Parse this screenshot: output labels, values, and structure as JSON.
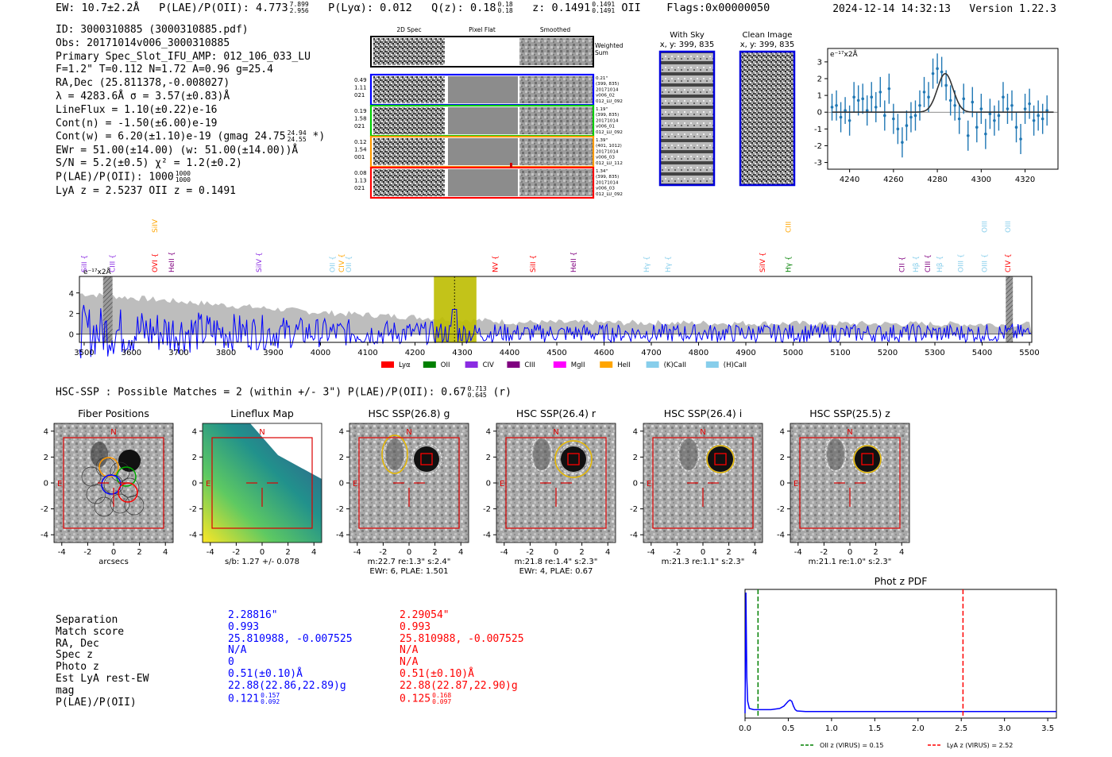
{
  "header": {
    "ew": "EW: 10.7±2.2Å",
    "plae_label": "P(LAE)/P(OII): 4.773",
    "plae_hi": "7.899",
    "plae_lo": "2.956",
    "plya": "P(Lyα): 0.012",
    "qz_label": "Q(z): 0.18",
    "qz_hi": "0.18",
    "qz_lo": "0.18",
    "z_label": "z: 0.1491",
    "z_hi": "0.1491",
    "z_lo": "0.1491",
    "z_line": "OII",
    "flags": "Flags:0x00000050",
    "datetime": "2024-12-14 14:32:13",
    "version": "Version 1.22.3"
  },
  "info": {
    "id": "ID: 3000310885 (3000310885.pdf)",
    "obs": "Obs: 20171014v006_3000310885",
    "primary": "Primary Spec_Slot_IFU_AMP: 012_106_033_LU",
    "params": "F=1.2\"  T=0.112  N=1.72  A=0.96  g=25.4",
    "radec": "RA,Dec (25.811378,-0.008027)",
    "lambda": "λ = 4283.6Å   σ = 3.57(±0.83)Å",
    "lineflux": "LineFlux = 1.10(±0.22)e-16",
    "contn": "Cont(n) = -1.50(±6.00)e-19",
    "contw": "Cont(w) = 6.20(±1.10)e-19 (gmag 24.75",
    "contw_hi": "24.94",
    "contw_lo": "24.55",
    "contw_end": "*)",
    "ewr": "EWr = 51.00(±14.00) (w: 51.00(±14.00))Å",
    "sn": "S/N = 5.2(±0.5)  χ² = 1.2(±0.2)",
    "plae": "P(LAE)/P(OII): 1000",
    "plae_hi": "1000",
    "plae_lo": "1000",
    "lyaz": "LyA z = 2.5237   OII z = 0.1491"
  },
  "cutouts": {
    "col_labels": [
      "2D Spec",
      "Pixel Flat",
      "Smoothed"
    ],
    "weighted_sum": [
      "Weighted",
      "Sum"
    ],
    "rows": [
      {
        "left": [
          "0.49",
          "1.11",
          "021"
        ],
        "right": [
          "0.21\"",
          "(399, 835)",
          "20171014",
          "v006_02",
          "012_LU_092"
        ],
        "color": "#0000ff"
      },
      {
        "left": [
          "0.19",
          "1.58",
          "021"
        ],
        "right": [
          "1.19\"",
          "(399, 835)",
          "20171014",
          "v006_01",
          "012_LU_092"
        ],
        "color": "#00cc00"
      },
      {
        "left": [
          "0.12",
          "1.54",
          "001"
        ],
        "right": [
          "1.39\"",
          "(401, 1012)",
          "20171014",
          "v006_03",
          "012_LU_112"
        ],
        "color": "#ff9900"
      },
      {
        "left": [
          "0.08",
          "1.13",
          "021"
        ],
        "right": [
          "1.34\"",
          "(399, 835)",
          "20171014",
          "v006_03",
          "012_LU_092"
        ],
        "color": "#ff0000"
      }
    ]
  },
  "sky": {
    "with_sky_title": "With Sky",
    "with_sky_coords": "x, y: 399, 835",
    "clean_title": "Clean Image",
    "clean_coords": "x, y: 399, 835"
  },
  "zoom_plot": {
    "ylabel": "e⁻¹⁷x2Å",
    "xticks": [
      "4240",
      "4260",
      "4280",
      "4300",
      "4320"
    ],
    "yticks": [
      "3",
      "2",
      "1",
      "0",
      "-1",
      "-2",
      "-3"
    ]
  },
  "spectrum": {
    "ylabel": "e⁻¹⁷x2Å",
    "xticks": [
      "3500",
      "3600",
      "3700",
      "3800",
      "3900",
      "4000",
      "4100",
      "4200",
      "4300",
      "4400",
      "4500",
      "4600",
      "4700",
      "4800",
      "4900",
      "5000",
      "5100",
      "5200",
      "5300",
      "5400",
      "5500"
    ],
    "yticks": [
      "4",
      "2",
      "0"
    ],
    "legend": [
      {
        "label": "Lyα",
        "color": "#ff0000"
      },
      {
        "label": "OII",
        "color": "#008000"
      },
      {
        "label": "CIV",
        "color": "#8a2be2"
      },
      {
        "label": "CIII",
        "color": "#800080"
      },
      {
        "label": "MgII",
        "color": "#ff00ff"
      },
      {
        "label": "HeII",
        "color": "#ffa500"
      },
      {
        "label": "(K)CaII",
        "color": "#87ceeb"
      },
      {
        "label": "(H)CaII",
        "color": "#87ceeb"
      }
    ],
    "line_labels": [
      {
        "text": "SiII",
        "wave": 3500,
        "color": "#8a2be2",
        "row": "low"
      },
      {
        "text": "CIII",
        "wave": 3560,
        "color": "#8a2be2",
        "row": "low"
      },
      {
        "text": "OVI",
        "wave": 3650,
        "color": "#ff0000",
        "row": "low"
      },
      {
        "text": "SiIV",
        "wave": 3650,
        "color": "#ffa500",
        "row": "high"
      },
      {
        "text": "HeII",
        "wave": 3685,
        "color": "#800080",
        "row": "low"
      },
      {
        "text": "SiIV",
        "wave": 3870,
        "color": "#8a2be2",
        "row": "low"
      },
      {
        "text": "OII",
        "wave": 4025,
        "color": "#87ceeb",
        "row": "low"
      },
      {
        "text": "CIV",
        "wave": 4045,
        "color": "#ffa500",
        "row": "low"
      },
      {
        "text": "OII",
        "wave": 4060,
        "color": "#87ceeb",
        "row": "low"
      },
      {
        "text": "NV",
        "wave": 4370,
        "color": "#ff0000",
        "row": "low"
      },
      {
        "text": "SiII",
        "wave": 4450,
        "color": "#ff0000",
        "row": "low"
      },
      {
        "text": "HeII",
        "wave": 4535,
        "color": "#800080",
        "row": "low"
      },
      {
        "text": "Hγ",
        "wave": 4690,
        "color": "#87ceeb",
        "row": "low"
      },
      {
        "text": "Hγ",
        "wave": 4735,
        "color": "#87ceeb",
        "row": "low"
      },
      {
        "text": "SiIV",
        "wave": 4935,
        "color": "#ff0000",
        "row": "low"
      },
      {
        "text": "CIII",
        "wave": 4990,
        "color": "#ffa500",
        "row": "high"
      },
      {
        "text": "Hγ",
        "wave": 4990,
        "color": "#008000",
        "row": "low"
      },
      {
        "text": "CII",
        "wave": 5230,
        "color": "#800080",
        "row": "low"
      },
      {
        "text": "Hβ",
        "wave": 5260,
        "color": "#87ceeb",
        "row": "low"
      },
      {
        "text": "CIII",
        "wave": 5285,
        "color": "#800080",
        "row": "low"
      },
      {
        "text": "Hβ",
        "wave": 5310,
        "color": "#87ceeb",
        "row": "low"
      },
      {
        "text": "OIII",
        "wave": 5355,
        "color": "#87ceeb",
        "row": "low"
      },
      {
        "text": "OIII",
        "wave": 5405,
        "color": "#87ceeb",
        "row": "high"
      },
      {
        "text": "OIII",
        "wave": 5405,
        "color": "#87ceeb",
        "row": "low"
      },
      {
        "text": "OIII",
        "wave": 5455,
        "color": "#87ceeb",
        "row": "high"
      },
      {
        "text": "CIV",
        "wave": 5455,
        "color": "#ff0000",
        "row": "low"
      }
    ]
  },
  "hsc": {
    "title": "HSC-SSP : Possible Matches = 2 (within +/- 3\")  P(LAE)/P(OII): 0.67",
    "title_hi": "0.713",
    "title_lo": "0.645",
    "title_end": "(r)",
    "panels": [
      {
        "title": "Fiber Positions",
        "caption1": "arcsecs",
        "caption2": ""
      },
      {
        "title": "Lineflux Map",
        "caption1": "s/b: 1.27 +/- 0.078",
        "caption2": ""
      },
      {
        "title": "HSC SSP(26.8) g",
        "caption1": "m:22.7  re:1.3\"  s:2.4\"",
        "caption2": "EWr: 6, PLAE: 1.501"
      },
      {
        "title": "HSC SSP(26.4) r",
        "caption1": "m:21.8  re:1.4\"  s:2.3\"",
        "caption2": "EWr: 4, PLAE: 0.67"
      },
      {
        "title": "HSC SSP(26.4) i",
        "caption1": "m:21.3  re:1.1\"  s:2.3\"",
        "caption2": ""
      },
      {
        "title": "HSC SSP(25.5) z",
        "caption1": "m:21.1  re:1.0\"  s:2.3\"",
        "caption2": ""
      }
    ],
    "axis_ticks": [
      "-4",
      "-2",
      "0",
      "2",
      "4"
    ],
    "n_label": "N",
    "e_label": "E"
  },
  "separation_table": {
    "labels": [
      "Separation",
      "Match score",
      "RA, Dec",
      "Spec z",
      "Photo z",
      "Est LyA rest-EW",
      "mag",
      "P(LAE)/P(OII)"
    ],
    "blue": [
      "2.28816\"",
      "0.993",
      "25.810988, -0.007525",
      "N/A",
      "0",
      "0.51(±0.10)Å",
      "22.88(22.86,22.89)g",
      "0.121"
    ],
    "blue_plae_hi": "0.157",
    "blue_plae_lo": "0.092",
    "red": [
      "2.29054\"",
      "0.993",
      "25.810988, -0.007525",
      "N/A",
      "N/A",
      "0.51(±0.10)Å",
      "22.88(22.87,22.90)g",
      "0.125"
    ],
    "red_plae_hi": "0.168",
    "red_plae_lo": "0.097"
  },
  "chart_data": [
    {
      "type": "scatter",
      "title": "",
      "xlabel": "",
      "ylabel": "e⁻¹⁷x2Å",
      "xlim": [
        4230,
        4335
      ],
      "ylim": [
        -3.4,
        3.8
      ],
      "x": [
        4232,
        4234,
        4236,
        4238,
        4240,
        4242,
        4244,
        4246,
        4248,
        4250,
        4252,
        4254,
        4256,
        4258,
        4260,
        4262,
        4264,
        4266,
        4268,
        4270,
        4272,
        4274,
        4276,
        4278,
        4280,
        4282,
        4284,
        4286,
        4288,
        4290,
        4292,
        4294,
        4296,
        4298,
        4300,
        4302,
        4304,
        4306,
        4308,
        4310,
        4312,
        4314,
        4316,
        4318,
        4320,
        4322,
        4324,
        4326,
        4328,
        4330
      ],
      "y": [
        0.3,
        0.4,
        -0.3,
        0.1,
        -0.5,
        0.9,
        0.7,
        0.8,
        0.1,
        0.9,
        0.3,
        1.2,
        -0.2,
        1.4,
        -0.4,
        -1.0,
        -1.8,
        -0.8,
        -0.3,
        -0.2,
        0.4,
        1.2,
        0.9,
        2.3,
        2.6,
        2.4,
        1.6,
        0.7,
        0.4,
        -0.4,
        0.8,
        -1.4,
        0.6,
        -0.9,
        0.2,
        -1.3,
        -0.1,
        -0.5,
        -0.2,
        0.9,
        0.2,
        0.4,
        -0.9,
        -1.6,
        0.2,
        0.5,
        -0.5,
        -0.2,
        -0.4,
        0.1
      ],
      "yerr": [
        0.8,
        0.9,
        0.9,
        0.8,
        0.9,
        0.9,
        0.9,
        0.9,
        0.9,
        0.9,
        0.9,
        0.9,
        0.9,
        0.9,
        0.9,
        0.9,
        0.9,
        0.9,
        0.9,
        0.9,
        0.9,
        0.9,
        0.9,
        0.9,
        0.9,
        0.9,
        0.9,
        0.9,
        0.9,
        0.9,
        0.9,
        0.9,
        0.9,
        0.9,
        0.9,
        0.9,
        0.9,
        0.9,
        0.9,
        0.9,
        0.9,
        0.9,
        0.9,
        0.9,
        0.9,
        0.9,
        0.9,
        0.9,
        0.9,
        0.9
      ],
      "model": {
        "center": 4283.6,
        "sigma": 3.57,
        "amplitude": 2.3,
        "continuum": 0.0
      }
    },
    {
      "type": "line",
      "title": "",
      "xlabel": "",
      "ylabel": "e⁻¹⁷x2Å",
      "xlim": [
        3490,
        5505
      ],
      "ylim": [
        -0.8,
        5.6
      ],
      "highlight": {
        "x0": 4240,
        "x1": 4330,
        "center": 4283.6
      },
      "mask_regions": [
        [
          3540,
          3560
        ],
        [
          5450,
          5465
        ]
      ]
    },
    {
      "type": "line",
      "title": "Phot z PDF",
      "xlabel": "",
      "ylabel": "",
      "xlim": [
        0.0,
        3.6
      ],
      "xticks": [
        "0.0",
        "0.5",
        "1.0",
        "1.5",
        "2.0",
        "2.5",
        "3.0",
        "3.5"
      ],
      "x": [
        0.0,
        0.01,
        0.02,
        0.03,
        0.05,
        0.1,
        0.2,
        0.3,
        0.4,
        0.45,
        0.5,
        0.52,
        0.54,
        0.56,
        0.58,
        0.6,
        0.7,
        1.0,
        2.0,
        3.0,
        3.6
      ],
      "y": [
        0.0,
        1.0,
        0.3,
        0.1,
        0.04,
        0.03,
        0.03,
        0.03,
        0.04,
        0.06,
        0.1,
        0.11,
        0.1,
        0.06,
        0.03,
        0.02,
        0.015,
        0.015,
        0.015,
        0.015,
        0.015
      ],
      "vlines": [
        {
          "x": 0.15,
          "color": "#008000",
          "label": "OII z (VIRUS) = 0.15"
        },
        {
          "x": 2.52,
          "color": "#ff0000",
          "label": "LyA z (VIRUS) = 2.52"
        }
      ]
    }
  ]
}
